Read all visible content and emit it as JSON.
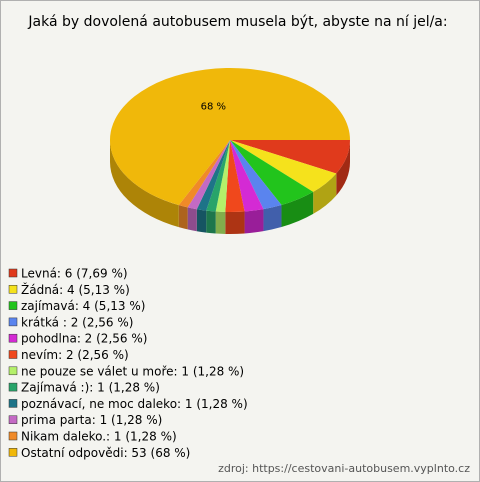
{
  "chart_data": {
    "type": "pie",
    "title": "Jaká by dovolená autobusem musela být, abyste na ní jel/a:",
    "categories": [
      "Levná: 6 (7,69 %)",
      "Žádná: 4 (5,13 %)",
      "zajímavá: 4 (5,13 %)",
      "krátká : 2 (2,56 %)",
      "pohodlna: 2 (2,56 %)",
      "nevím: 2 (2,56 %)",
      "ne pouze se válet u moře: 1 (1,28 %)",
      "Zajímavá :): 1 (1,28 %)",
      "poznávací, ne moc daleko: 1 (1,28 %)",
      "prima parta: 1 (1,28 %)",
      "Nikam daleko.: 1 (1,28 %)",
      "Ostatní odpovědi: 53 (68 %)"
    ],
    "values": [
      7.69,
      5.13,
      5.13,
      2.56,
      2.56,
      2.56,
      1.28,
      1.28,
      1.28,
      1.28,
      1.28,
      68
    ],
    "value_labels": [
      null,
      null,
      null,
      null,
      null,
      null,
      null,
      null,
      null,
      null,
      null,
      "68 %"
    ],
    "colors": [
      "#e03a1c",
      "#f5e21c",
      "#22c41c",
      "#5a84ee",
      "#d42ad4",
      "#f0481c",
      "#b4f06a",
      "#28a46a",
      "#1e7488",
      "#c46ac4",
      "#f08a28",
      "#f0b80a"
    ],
    "source": "zdroj: https://cestovani-autobusem.vyplnto.cz"
  }
}
